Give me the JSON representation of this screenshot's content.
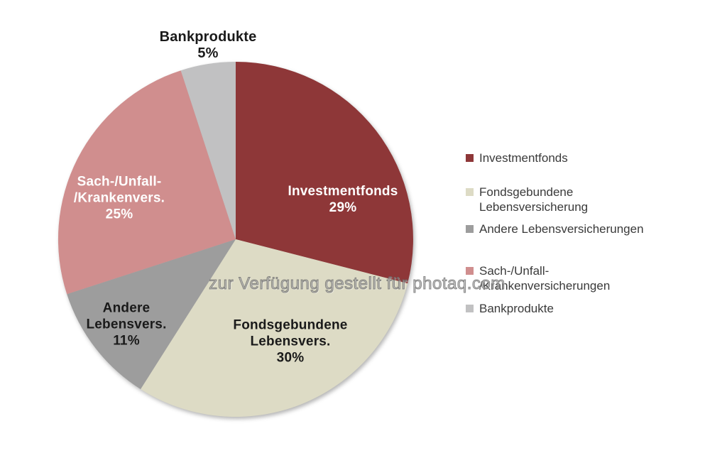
{
  "watermark": {
    "text": "zur Verfügung gestellt für photaq.com"
  },
  "colors": {
    "background": "#FFFFFF",
    "legend_text": "#3A3A3A",
    "pie_label_dark": "#1A1A1A",
    "pie_label_light": "#FFFFFF",
    "watermark_gray": "#8A8A8A"
  },
  "chart_data": {
    "type": "pie",
    "title": "",
    "unit": "%",
    "values_sum": 100,
    "start_angle_deg": 0,
    "direction": "clockwise",
    "legend_position": "right",
    "slices": [
      {
        "name": "investmentfonds",
        "legend_label": "Investmentfonds",
        "pie_label_lines": [
          "Investmentfonds",
          "29%"
        ],
        "value": 29,
        "color": "#8E3738",
        "pie_label_color": "#FFFFFF",
        "pie_label_placement": "inside"
      },
      {
        "name": "fondsgebundene-lebensversicherung",
        "legend_label": "Fondsgebundene Lebensversicherung",
        "legend_label_lines": [
          "Fondsgebundene",
          "Lebensversicherung"
        ],
        "pie_label_lines": [
          "Fondsgebundene",
          "Lebensvers.",
          "30%"
        ],
        "value": 30,
        "color": "#DDDBC5",
        "pie_label_color": "#1A1A1A",
        "pie_label_placement": "inside"
      },
      {
        "name": "andere-lebensversicherungen",
        "legend_label": "Andere Lebensversicherungen",
        "pie_label_lines": [
          "Andere",
          "Lebensvers.",
          "11%"
        ],
        "value": 11,
        "color": "#9D9D9D",
        "pie_label_color": "#1A1A1A",
        "pie_label_placement": "inside"
      },
      {
        "name": "sach-unfall-krankenversicherungen",
        "legend_label": "Sach-/Unfall-/Krankenversicherungen",
        "legend_label_lines": [
          "Sach-/Unfall-",
          "/Krankenversicherungen"
        ],
        "pie_label_lines": [
          "Sach-/Unfall-",
          "/Krankenvers.",
          "25%"
        ],
        "value": 25,
        "color": "#D08E8E",
        "pie_label_color": "#FFFFFF",
        "pie_label_placement": "inside"
      },
      {
        "name": "bankprodukte",
        "legend_label": "Bankprodukte",
        "pie_label_lines": [
          "Bankprodukte",
          "5%"
        ],
        "value": 5,
        "color": "#C1C1C2",
        "pie_label_color": "#1A1A1A",
        "pie_label_placement": "outside"
      }
    ]
  }
}
